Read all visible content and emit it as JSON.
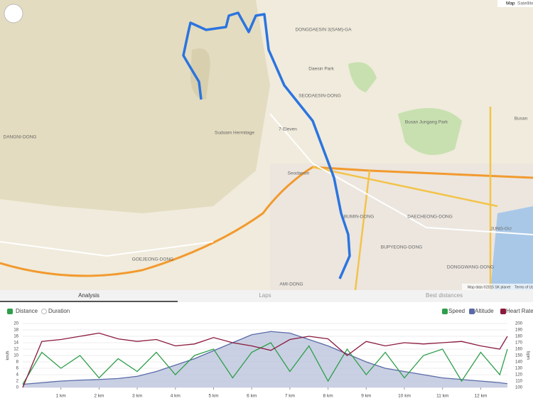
{
  "map": {
    "controls": [
      "Map",
      "Satellite"
    ],
    "labels": [
      "DONGDAESIN 3(SAM)-GA",
      "Daesin Park",
      "Sudoam Hermitage",
      "Seodaesin",
      "Busan Jungang Park",
      "DANGNI-DONG",
      "7-Eleven",
      "GOEJEONG-DONG",
      "AMI-DONG",
      "BUMIN-DONG",
      "BUPYEONG-DONG",
      "DONGGWANG-DONG",
      "Busan",
      "JUNG-GU",
      "SEODAESIN-DONG",
      "DAECHEONG-DONG"
    ],
    "attribution": "Map data ©2015 SK planet",
    "terms": "Terms of Use"
  },
  "tabs": [
    "Analysis",
    "Laps",
    "Best distances"
  ],
  "x_modes": [
    "Distance",
    "Duration"
  ],
  "chart_data": {
    "type": "line",
    "x": [
      0,
      0.5,
      1,
      1.5,
      2,
      2.5,
      3,
      3.5,
      4,
      4.5,
      5,
      5.5,
      6,
      6.5,
      7,
      7.5,
      8,
      8.5,
      9,
      9.5,
      10,
      10.5,
      11,
      11.5,
      12,
      12.5,
      12.7
    ],
    "series": [
      {
        "name": "Speed",
        "color": "#2e9e4a",
        "values": [
          1,
          11,
          6,
          10,
          3,
          9,
          5,
          11,
          4,
          10,
          12,
          3,
          11,
          14,
          5,
          13,
          2,
          12,
          4,
          11,
          3,
          10,
          12,
          2,
          11,
          4,
          12
        ]
      },
      {
        "name": "Altitude",
        "color": "#5a6aa8",
        "fill": "#bcc4dc",
        "values": [
          1,
          1.5,
          2,
          2.3,
          2.5,
          2.8,
          3.5,
          5,
          7,
          9,
          11.5,
          14,
          16.5,
          17.5,
          17,
          15,
          13,
          10.5,
          8,
          6,
          5,
          4,
          3,
          2.5,
          2,
          1.5,
          1.2
        ]
      },
      {
        "name": "Heart Rate",
        "color": "#8b1a3c",
        "axis": "y2",
        "values": [
          100,
          172,
          175,
          180,
          185,
          176,
          172,
          175,
          165,
          168,
          178,
          170,
          165,
          158,
          175,
          180,
          176,
          150,
          172,
          165,
          170,
          168,
          170,
          172,
          165,
          160,
          180
        ]
      }
    ],
    "ylabel": "km/h",
    "y2label": "bpm",
    "xlim": [
      0,
      12.7
    ],
    "xticks": [
      {
        "value": 1,
        "label": "1 km"
      },
      {
        "value": 2,
        "label": "2 km"
      },
      {
        "value": 3,
        "label": "3 km"
      },
      {
        "value": 4,
        "label": "4 km"
      },
      {
        "value": 5,
        "label": "5 km"
      },
      {
        "value": 6,
        "label": "6 km"
      },
      {
        "value": 7,
        "label": "7 km"
      },
      {
        "value": 8,
        "label": "8 km"
      },
      {
        "value": 9,
        "label": "9 km"
      },
      {
        "value": 10,
        "label": "10 km"
      },
      {
        "value": 11,
        "label": "11 km"
      },
      {
        "value": 12,
        "label": "12 km"
      }
    ],
    "ylim": [
      0,
      20
    ],
    "yticks": [
      0,
      2,
      4,
      6,
      8,
      10,
      12,
      14,
      16,
      18,
      20
    ],
    "y2lim": [
      100,
      200
    ],
    "y2ticks": [
      100,
      110,
      120,
      130,
      140,
      150,
      160,
      170,
      180,
      190,
      200
    ],
    "grid": true
  }
}
